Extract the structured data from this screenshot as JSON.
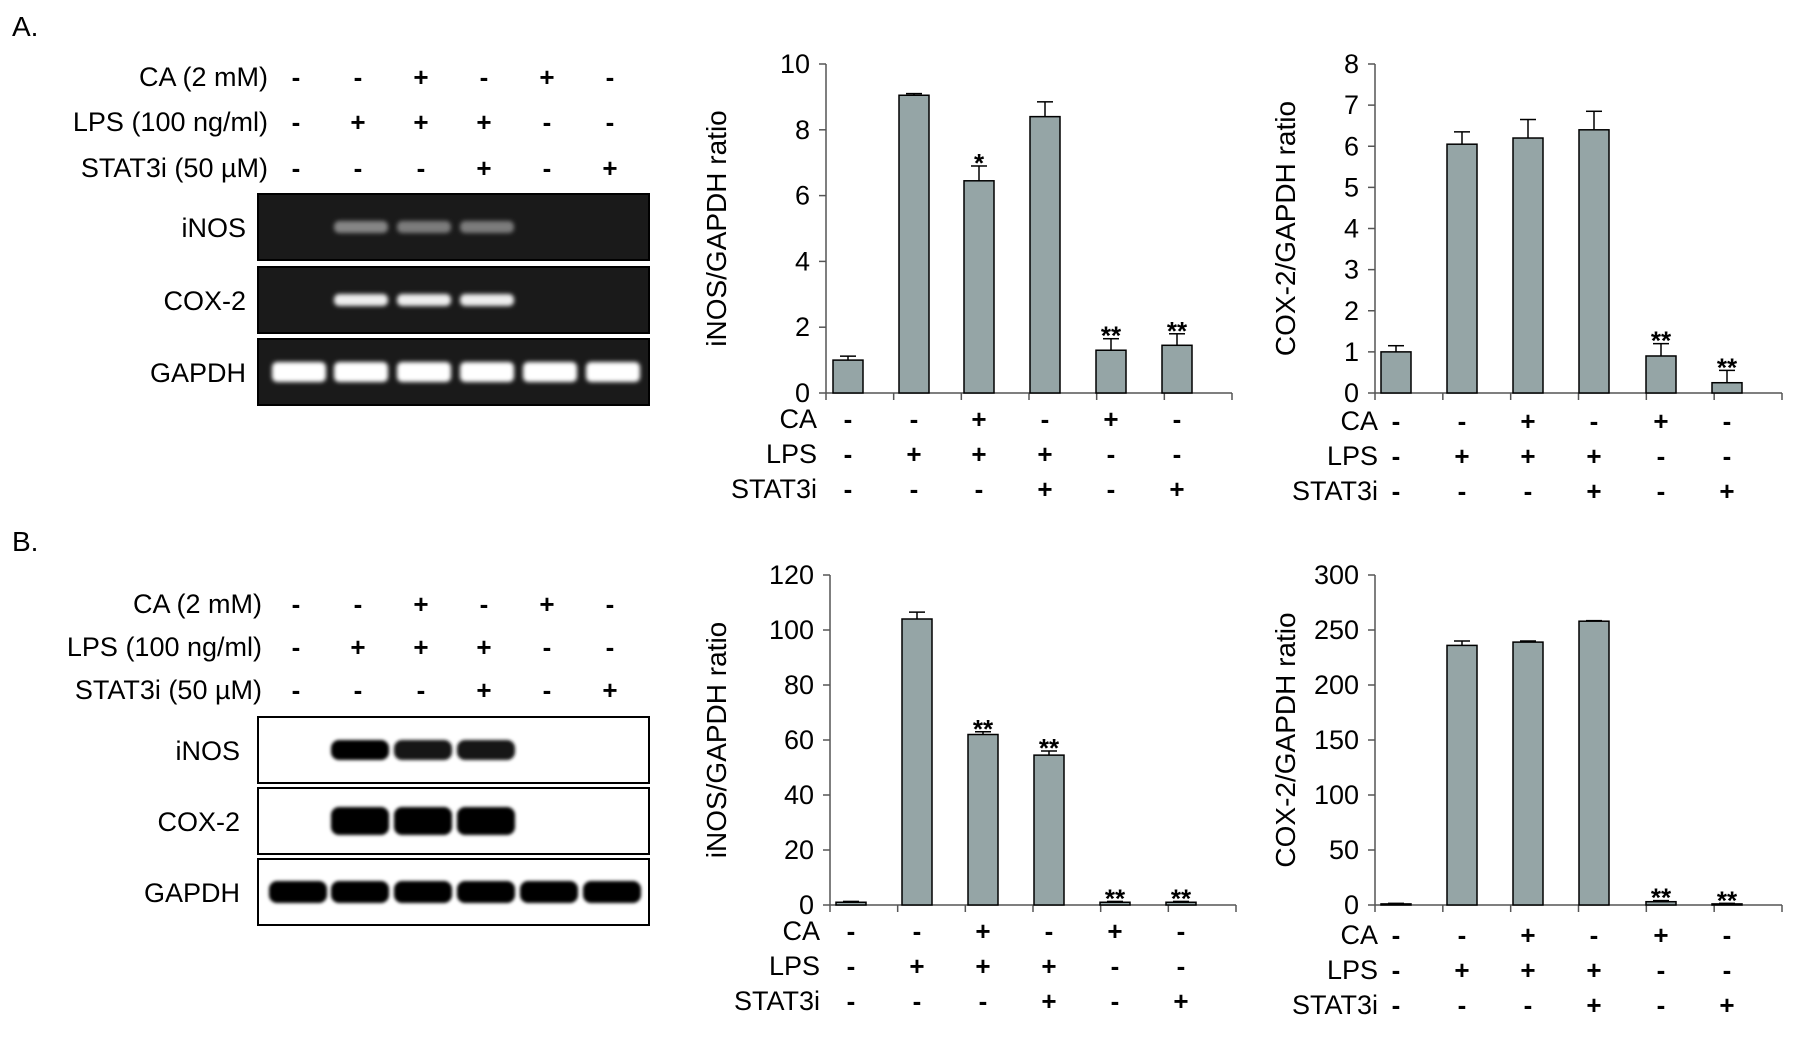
{
  "panels": [
    {
      "label": "A.",
      "gel_type": "rt-pcr",
      "treatment_labels": [
        "CA (2 mM)",
        "LPS (100 ng/ml)",
        "STAT3i (50 µM)"
      ],
      "treatment_signs": [
        [
          "-",
          "-",
          "+",
          "-",
          "+",
          "-"
        ],
        [
          "-",
          "+",
          "+",
          "+",
          "-",
          "-"
        ],
        [
          "-",
          "-",
          "-",
          "+",
          "-",
          "+"
        ]
      ],
      "blots": [
        {
          "label": "iNOS",
          "intensities": [
            0,
            0.3,
            0.25,
            0.25,
            0,
            0
          ]
        },
        {
          "label": "COX-2",
          "intensities": [
            0,
            0.9,
            0.9,
            0.9,
            0,
            0
          ]
        },
        {
          "label": "GAPDH",
          "intensities": [
            1,
            1,
            1,
            1,
            1,
            1
          ]
        }
      ]
    },
    {
      "label": "B.",
      "gel_type": "western",
      "treatment_labels": [
        "CA (2 mM)",
        "LPS (100 ng/ml)",
        "STAT3i (50 µM)"
      ],
      "treatment_signs": [
        [
          "-",
          "-",
          "+",
          "-",
          "+",
          "-"
        ],
        [
          "-",
          "+",
          "+",
          "+",
          "-",
          "-"
        ],
        [
          "-",
          "-",
          "-",
          "+",
          "-",
          "+"
        ]
      ],
      "blots": [
        {
          "label": "iNOS",
          "intensities": [
            0,
            1.0,
            0.7,
            0.7,
            0,
            0
          ]
        },
        {
          "label": "COX-2",
          "intensities": [
            0,
            1.0,
            1.0,
            1.0,
            0,
            0
          ]
        },
        {
          "label": "GAPDH",
          "intensities": [
            1,
            1,
            1,
            1,
            1,
            1
          ]
        }
      ]
    }
  ],
  "chart_data": [
    {
      "type": "bar",
      "panel": "A.",
      "ylabel": "iNOS/GAPDH ratio",
      "ylim": [
        0,
        10
      ],
      "yticks": [
        0,
        2,
        4,
        6,
        8,
        10
      ],
      "values": [
        1.0,
        9.05,
        6.45,
        8.4,
        1.3,
        1.45
      ],
      "errors": [
        0.12,
        0.05,
        0.45,
        0.45,
        0.35,
        0.35
      ],
      "annotations": [
        "",
        "",
        "*",
        "",
        "**",
        "**"
      ],
      "treatment_labels": [
        "CA",
        "LPS",
        "STAT3i"
      ],
      "treatment_signs": [
        [
          "-",
          "-",
          "+",
          "-",
          "+",
          "-"
        ],
        [
          "-",
          "+",
          "+",
          "+",
          "-",
          "-"
        ],
        [
          "-",
          "-",
          "-",
          "+",
          "-",
          "+"
        ]
      ],
      "bar_color": "#95a5a6"
    },
    {
      "type": "bar",
      "panel": "A.",
      "ylabel": "COX-2/GAPDH ratio",
      "ylim": [
        0,
        8
      ],
      "yticks": [
        0,
        1,
        2,
        3,
        4,
        5,
        6,
        7,
        8
      ],
      "values": [
        1.0,
        6.05,
        6.2,
        6.4,
        0.9,
        0.25
      ],
      "errors": [
        0.15,
        0.3,
        0.45,
        0.45,
        0.3,
        0.3
      ],
      "annotations": [
        "",
        "",
        "",
        "",
        "**",
        "**"
      ],
      "treatment_labels": [
        "CA",
        "LPS",
        "STAT3i"
      ],
      "treatment_signs": [
        [
          "-",
          "-",
          "+",
          "-",
          "+",
          "-"
        ],
        [
          "-",
          "+",
          "+",
          "+",
          "-",
          "-"
        ],
        [
          "-",
          "-",
          "-",
          "+",
          "-",
          "+"
        ]
      ],
      "bar_color": "#95a5a6"
    },
    {
      "type": "bar",
      "panel": "B.",
      "ylabel": "iNOS/GAPDH ratio",
      "ylim": [
        0,
        120
      ],
      "yticks": [
        0,
        20,
        40,
        60,
        80,
        100,
        120
      ],
      "values": [
        1,
        104,
        62,
        54.5,
        1,
        1
      ],
      "errors": [
        0.3,
        2.5,
        1,
        1.5,
        0.3,
        0.3
      ],
      "annotations": [
        "",
        "",
        "**",
        "**",
        "**",
        "**"
      ],
      "treatment_labels": [
        "CA",
        "LPS",
        "STAT3i"
      ],
      "treatment_signs": [
        [
          "-",
          "-",
          "+",
          "-",
          "+",
          "-"
        ],
        [
          "-",
          "+",
          "+",
          "+",
          "-",
          "-"
        ],
        [
          "-",
          "-",
          "-",
          "+",
          "-",
          "+"
        ]
      ],
      "bar_color": "#95a5a6"
    },
    {
      "type": "bar",
      "panel": "B.",
      "ylabel": "COX-2/GAPDH ratio",
      "ylim": [
        0,
        300
      ],
      "yticks": [
        0,
        50,
        100,
        150,
        200,
        250,
        300
      ],
      "values": [
        1,
        236,
        239,
        258,
        3,
        1
      ],
      "errors": [
        0.5,
        4,
        1,
        0.5,
        1,
        0.5
      ],
      "annotations": [
        "",
        "",
        "",
        "",
        "**",
        "**"
      ],
      "treatment_labels": [
        "CA",
        "LPS",
        "STAT3i"
      ],
      "treatment_signs": [
        [
          "-",
          "-",
          "+",
          "-",
          "+",
          "-"
        ],
        [
          "-",
          "+",
          "+",
          "+",
          "-",
          "-"
        ],
        [
          "-",
          "-",
          "-",
          "+",
          "-",
          "+"
        ]
      ],
      "bar_color": "#95a5a6"
    }
  ]
}
